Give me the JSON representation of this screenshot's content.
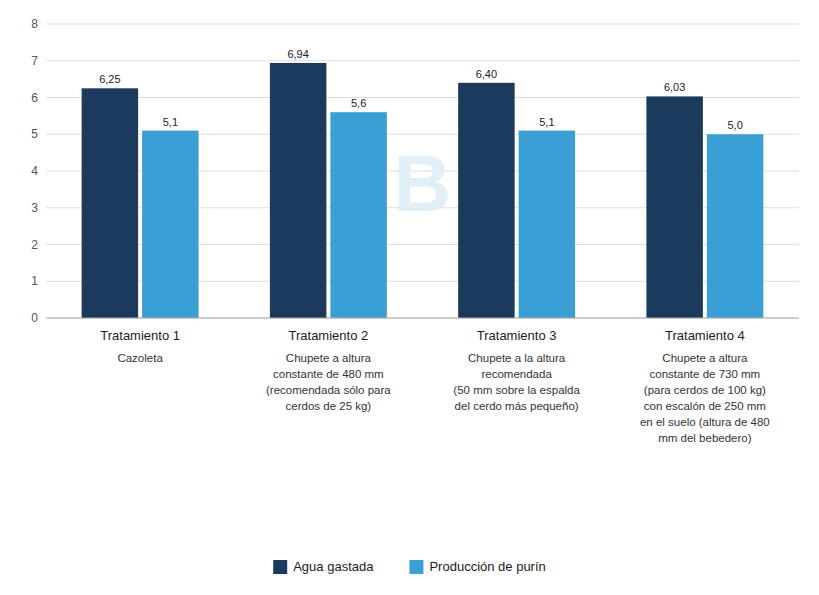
{
  "chart_data": {
    "type": "bar",
    "categories": [
      "Tratamiento 1",
      "Tratamiento 2",
      "Tratamiento 3",
      "Tratamiento 4"
    ],
    "annotations": [
      "Cazoleta",
      "Chupete a altura\nconstante de 480 mm\n(recomendada sólo para\ncerdos de 25 kg)",
      "Chupete a la altura\nrecomendada\n(50 mm sobre la espalda\ndel cerdo más pequeño)",
      "Chupete a altura\nconstante de 730 mm\n(para cerdos de 100 kg)\ncon escalón de 250 mm\nen el suelo (altura de 480\nmm del bebedero)",
      "B"
    ],
    "series": [
      {
        "name": "Agua gastada",
        "color": "#1b3a5c",
        "values": [
          6.25,
          6.94,
          6.4,
          6.03
        ],
        "value_labels": [
          "6,25",
          "6,94",
          "6,40",
          "6,03"
        ]
      },
      {
        "name": "Producción de purín",
        "color": "#3a9fd5",
        "values": [
          5.1,
          5.6,
          5.1,
          5.0
        ],
        "value_labels": [
          "5,1",
          "5,6",
          "5,1",
          "5,0"
        ]
      }
    ],
    "ylim": [
      0,
      8
    ],
    "yticks": [
      0,
      1,
      2,
      3,
      4,
      5,
      6,
      7,
      8
    ],
    "grid": true,
    "data_labels": true,
    "legend": "bottom"
  }
}
